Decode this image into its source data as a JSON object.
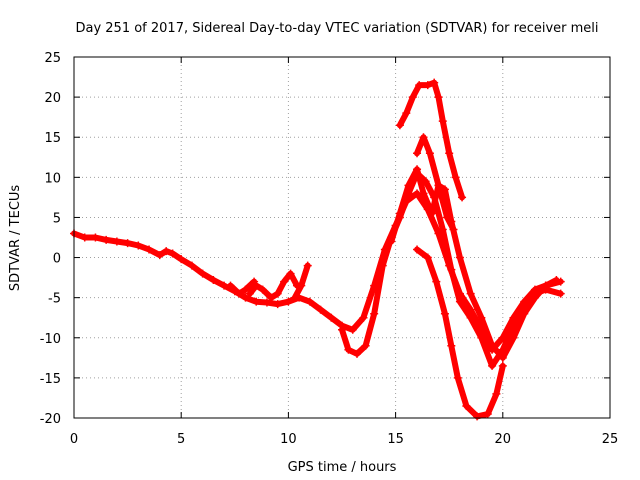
{
  "chart_data": {
    "type": "scatter",
    "title": "Day 251 of 2017, Sidereal Day-to-day VTEC variation (SDTVAR) for receiver meli",
    "xlabel": "GPS time / hours",
    "ylabel": "SDTVAR / TECUs",
    "xlim": [
      0,
      25
    ],
    "ylim": [
      -20,
      25
    ],
    "x_ticks": [
      0,
      5,
      10,
      15,
      20,
      25
    ],
    "x_tick_labels": [
      "0",
      "5",
      "10",
      "15",
      "20",
      "25"
    ],
    "y_ticks": [
      -20,
      -15,
      -10,
      -5,
      0,
      5,
      10,
      15,
      20,
      25
    ],
    "y_tick_labels": [
      "-20",
      "-15",
      "-10",
      "-5",
      "0",
      "5",
      "10",
      "15",
      "20",
      "25"
    ],
    "grid": true,
    "marker": "+",
    "color": "#ff0000",
    "series": [
      {
        "name": "main-trace",
        "points": [
          [
            0,
            3
          ],
          [
            0.5,
            2.5
          ],
          [
            1,
            2.5
          ],
          [
            1.5,
            2.2
          ],
          [
            2,
            2
          ],
          [
            2.5,
            1.8
          ],
          [
            3,
            1.5
          ],
          [
            3.5,
            1
          ],
          [
            4,
            0.3
          ],
          [
            4.3,
            0.8
          ],
          [
            4.6,
            0.5
          ],
          [
            5,
            -0.2
          ],
          [
            5.5,
            -1
          ],
          [
            6,
            -2
          ],
          [
            6.5,
            -2.8
          ],
          [
            7,
            -3.5
          ],
          [
            7.5,
            -4.2
          ],
          [
            8,
            -5
          ],
          [
            8.5,
            -5.5
          ],
          [
            9,
            -5.6
          ],
          [
            9.5,
            -5.8
          ],
          [
            10,
            -5.5
          ],
          [
            10.5,
            -5
          ],
          [
            11,
            -5.5
          ],
          [
            11.5,
            -6.5
          ],
          [
            12,
            -7.5
          ],
          [
            12.5,
            -8.5
          ],
          [
            13,
            -9
          ],
          [
            13.5,
            -7.5
          ],
          [
            14,
            -3.5
          ],
          [
            14.5,
            1
          ],
          [
            15,
            4
          ],
          [
            15.5,
            7
          ],
          [
            16,
            8
          ],
          [
            16.5,
            6
          ],
          [
            17,
            3
          ],
          [
            17.5,
            -1
          ],
          [
            18,
            -4.5
          ],
          [
            18.5,
            -6.5
          ],
          [
            19,
            -9
          ],
          [
            19.5,
            -11.5
          ],
          [
            20,
            -10
          ],
          [
            20.5,
            -7.5
          ],
          [
            21,
            -5.5
          ],
          [
            21.5,
            -4
          ],
          [
            22,
            -3.5
          ],
          [
            22.7,
            -3
          ]
        ]
      },
      {
        "name": "lower-branch",
        "points": [
          [
            12.5,
            -9
          ],
          [
            12.8,
            -11.5
          ],
          [
            13.2,
            -12
          ],
          [
            13.6,
            -11
          ],
          [
            14,
            -7
          ],
          [
            14.4,
            -1
          ],
          [
            14.8,
            2.5
          ],
          [
            15.2,
            5
          ],
          [
            15.6,
            8
          ],
          [
            16,
            10.5
          ],
          [
            16.4,
            9.5
          ],
          [
            16.8,
            7.5
          ],
          [
            17.2,
            3.5
          ],
          [
            17.6,
            -1.5
          ],
          [
            18,
            -5.5
          ],
          [
            18.5,
            -7.5
          ],
          [
            19,
            -10
          ],
          [
            19.5,
            -13.5
          ],
          [
            20,
            -11.5
          ],
          [
            20.5,
            -8.5
          ],
          [
            21,
            -6
          ],
          [
            21.5,
            -4.5
          ],
          [
            22,
            -4
          ],
          [
            22.7,
            -4.5
          ]
        ]
      },
      {
        "name": "mid-branch",
        "points": [
          [
            14.8,
            2
          ],
          [
            15.2,
            5.5
          ],
          [
            15.6,
            9
          ],
          [
            16,
            11
          ],
          [
            16.3,
            8
          ],
          [
            16.7,
            5.5
          ],
          [
            17,
            9
          ],
          [
            17.3,
            8.5
          ],
          [
            17.6,
            4.5
          ],
          [
            18,
            0
          ],
          [
            18.5,
            -4.5
          ],
          [
            19,
            -7.5
          ],
          [
            19.5,
            -11
          ],
          [
            20,
            -12.5
          ],
          [
            20.5,
            -10
          ],
          [
            21,
            -7
          ],
          [
            21.5,
            -5
          ],
          [
            22,
            -3.5
          ],
          [
            22.5,
            -2.8
          ]
        ]
      },
      {
        "name": "upper-branch",
        "points": [
          [
            16,
            13
          ],
          [
            16.3,
            15
          ],
          [
            16.6,
            13
          ],
          [
            17,
            9
          ],
          [
            17.4,
            5
          ],
          [
            17.7,
            3.5
          ]
        ]
      },
      {
        "name": "top-arc",
        "points": [
          [
            15.2,
            16.5
          ],
          [
            15.5,
            18
          ],
          [
            15.8,
            20
          ],
          [
            16.1,
            21.5
          ],
          [
            16.5,
            21.5
          ],
          [
            16.8,
            21.8
          ],
          [
            17,
            20
          ],
          [
            17.2,
            17
          ],
          [
            17.5,
            13
          ],
          [
            17.8,
            10
          ],
          [
            18.1,
            7.5
          ]
        ]
      },
      {
        "name": "deep-dip",
        "points": [
          [
            16,
            1
          ],
          [
            16.5,
            0
          ],
          [
            16.9,
            -3
          ],
          [
            17.3,
            -7
          ],
          [
            17.6,
            -11
          ],
          [
            17.9,
            -15
          ],
          [
            18.3,
            -18.5
          ],
          [
            18.8,
            -19.8
          ],
          [
            19.3,
            -19.5
          ],
          [
            19.7,
            -17
          ],
          [
            20,
            -13.5
          ]
        ]
      },
      {
        "name": "spike-9-10",
        "points": [
          [
            8.2,
            -4.5
          ],
          [
            8.5,
            -3.5
          ],
          [
            8.8,
            -4
          ],
          [
            9.2,
            -5
          ],
          [
            9.5,
            -4.5
          ],
          [
            9.8,
            -3
          ],
          [
            10.1,
            -2
          ],
          [
            10.4,
            -3.5
          ]
        ]
      },
      {
        "name": "spike-11",
        "points": [
          [
            10.3,
            -5
          ],
          [
            10.6,
            -3.5
          ],
          [
            10.9,
            -1
          ]
        ]
      },
      {
        "name": "cluster-7-8",
        "points": [
          [
            7.3,
            -3.5
          ],
          [
            7.7,
            -4.5
          ],
          [
            8,
            -4
          ],
          [
            8.4,
            -3
          ]
        ]
      }
    ]
  }
}
